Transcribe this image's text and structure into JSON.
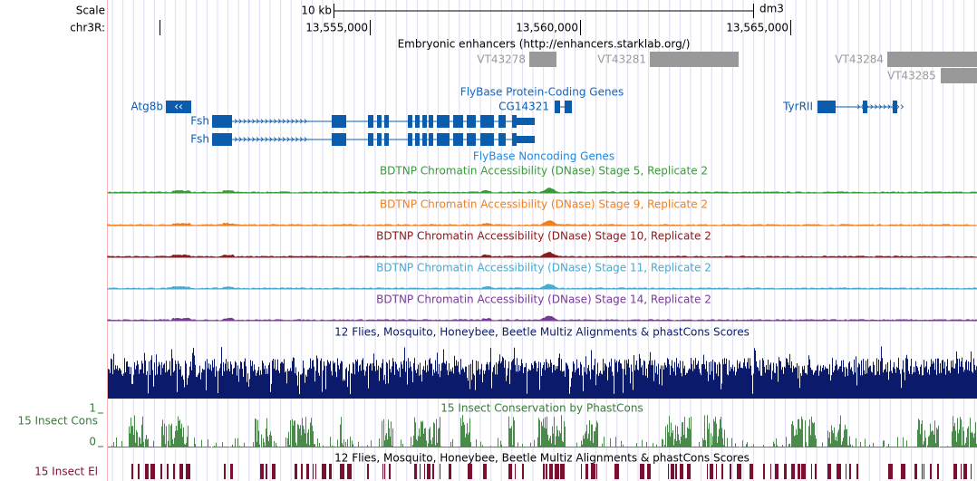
{
  "ruler": {
    "scale_label": "Scale",
    "scale_size": "10 kb",
    "assembly": "dm3",
    "chrom_label": "chr3R:",
    "positions": [
      "13,555,000",
      "13,560,000",
      "13,565,000"
    ]
  },
  "enhancers": {
    "title": "Embryonic enhancers (http://enhancers.starklab.org/)",
    "items": [
      "VT43278",
      "VT43281",
      "VT43284",
      "VT43285"
    ]
  },
  "protein_coding": {
    "title": "FlyBase Protein-Coding Genes",
    "genes": [
      "Atg8b",
      "Fsh",
      "Fsh",
      "CG14321",
      "TyrRII"
    ]
  },
  "noncoding": {
    "title": "FlyBase Noncoding Genes"
  },
  "dnase_tracks": [
    "BDTNP Chromatin Accessibility (DNase) Stage 5, Replicate 2",
    "BDTNP Chromatin Accessibility (DNase) Stage 9, Replicate 2",
    "BDTNP Chromatin Accessibility (DNase) Stage 10, Replicate 2",
    "BDTNP Chromatin Accessibility (DNase) Stage 11, Replicate 2",
    "BDTNP Chromatin Accessibility (DNase) Stage 14, Replicate 2"
  ],
  "multiz": {
    "title": "12 Flies, Mosquito, Honeybee, Beetle Multiz Alignments & phastCons Scores"
  },
  "conservation": {
    "title": "15 Insect Conservation by PhastCons",
    "side_label": "15 Insect Cons",
    "max_label": "1",
    "min_label": "0"
  },
  "elements": {
    "title": "12 Flies, Mosquito, Honeybee, Beetle Multiz Alignments & phastCons Scores",
    "side_label": "15 Insect El"
  }
}
